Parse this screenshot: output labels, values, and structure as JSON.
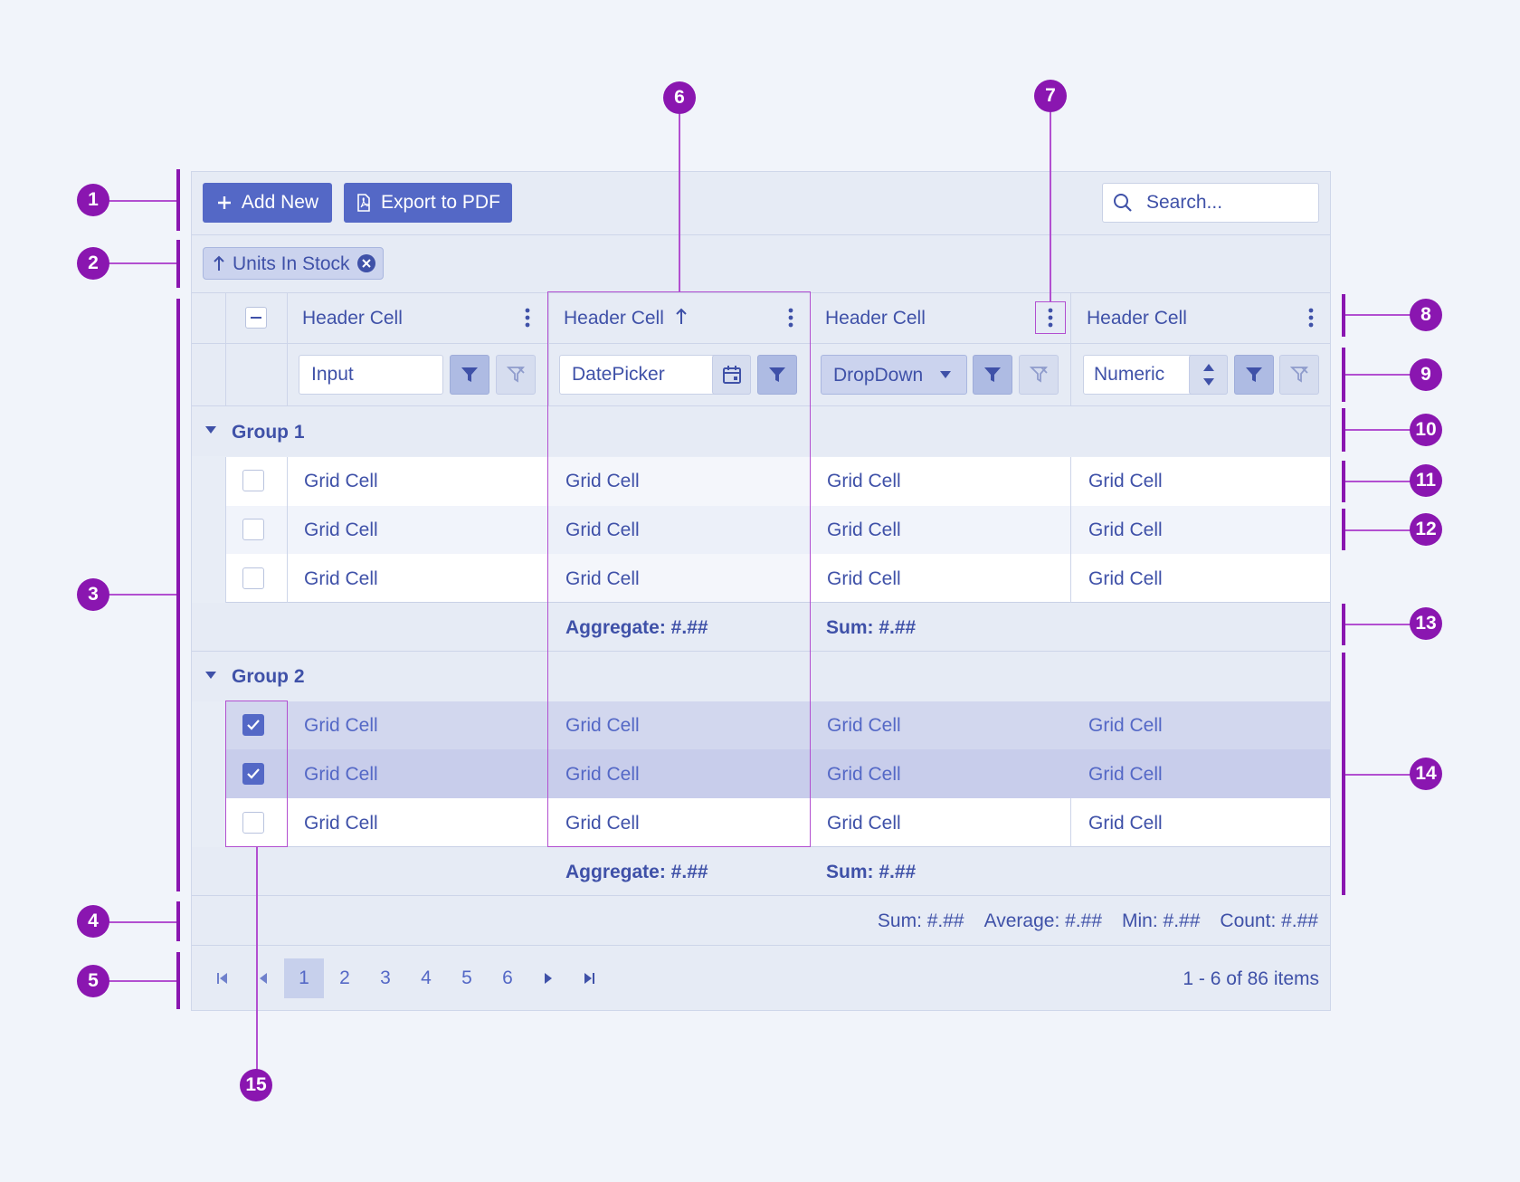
{
  "toolbar": {
    "add_new": "Add New",
    "export_pdf": "Export to PDF",
    "search_placeholder": "Search..."
  },
  "grouping": {
    "chip_label": "Units In Stock"
  },
  "header": {
    "cells": [
      "Header Cell",
      "Header Cell",
      "Header Cell",
      "Header Cell"
    ]
  },
  "filter": {
    "input": "Input",
    "datepicker": "DatePicker",
    "dropdown": "DropDown",
    "numeric": "Numeric"
  },
  "groups": [
    {
      "title": "Group 1",
      "rows": [
        {
          "checked": false,
          "cells": [
            "Grid Cell",
            "Grid Cell",
            "Grid Cell",
            "Grid Cell"
          ]
        },
        {
          "checked": false,
          "cells": [
            "Grid Cell",
            "Grid Cell",
            "Grid Cell",
            "Grid Cell"
          ]
        },
        {
          "checked": false,
          "cells": [
            "Grid Cell",
            "Grid Cell",
            "Grid Cell",
            "Grid Cell"
          ]
        }
      ],
      "footer": {
        "aggregate": "Aggregate: #.##",
        "sum": "Sum: #.##"
      }
    },
    {
      "title": "Group 2",
      "rows": [
        {
          "checked": true,
          "cells": [
            "Grid Cell",
            "Grid Cell",
            "Grid Cell",
            "Grid Cell"
          ]
        },
        {
          "checked": true,
          "cells": [
            "Grid Cell",
            "Grid Cell",
            "Grid Cell",
            "Grid Cell"
          ]
        },
        {
          "checked": false,
          "cells": [
            "Grid Cell",
            "Grid Cell",
            "Grid Cell",
            "Grid Cell"
          ]
        }
      ],
      "footer": {
        "aggregate": "Aggregate: #.##",
        "sum": "Sum: #.##"
      }
    }
  ],
  "totals": {
    "sum": "Sum: #.##",
    "average": "Average: #.##",
    "min": "Min: #.##",
    "count": "Count: #.##"
  },
  "pager": {
    "pages": [
      "1",
      "2",
      "3",
      "4",
      "5",
      "6"
    ],
    "current_page": "1",
    "info": "1 - 6 of 86 items"
  },
  "callouts": [
    "1",
    "2",
    "3",
    "4",
    "5",
    "6",
    "7",
    "8",
    "9",
    "10",
    "11",
    "12",
    "13",
    "14",
    "15"
  ],
  "colors": {
    "accent": "#5468c6",
    "callout": "#8a16b0",
    "text": "#3f51a8",
    "selected_row": "#c8cdeb"
  }
}
